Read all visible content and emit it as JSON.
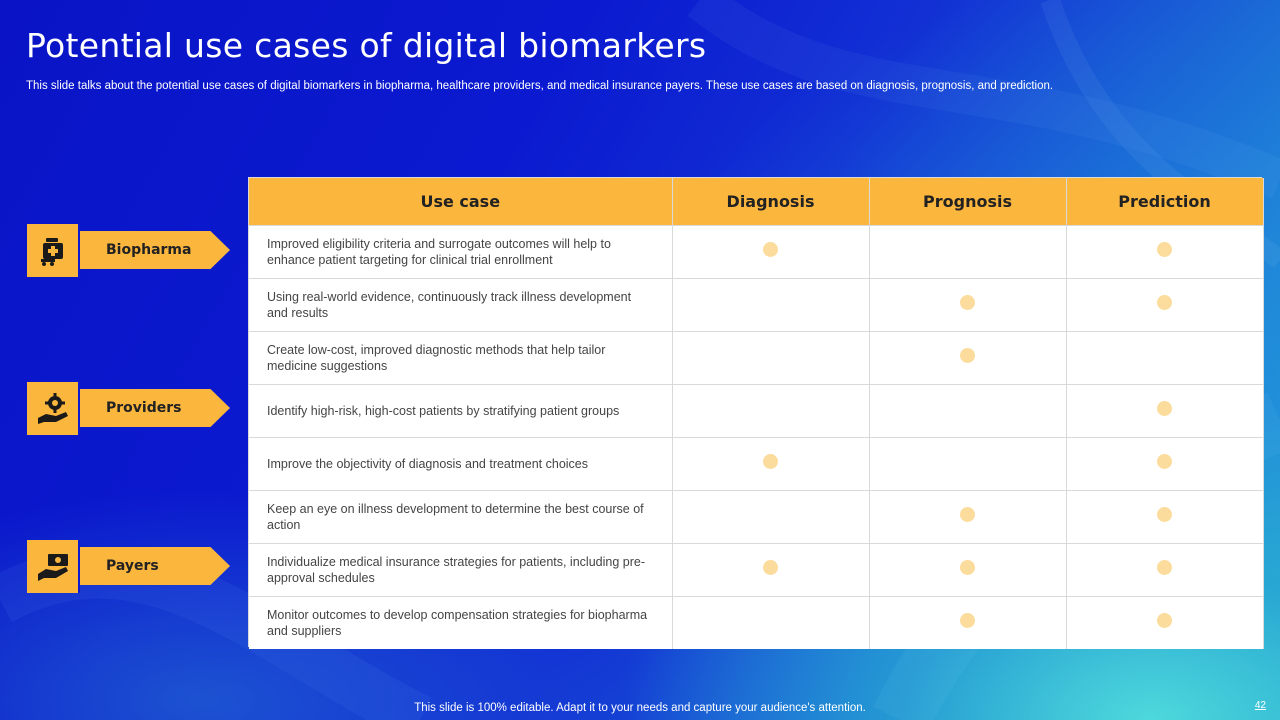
{
  "slide": {
    "title": "Potential use cases of digital biomarkers",
    "subtitle": "This slide talks about the potential use cases of digital biomarkers in biopharma, healthcare providers, and medical insurance payers. These use cases are based on diagnosis, prognosis, and prediction.",
    "footer": "This slide is 100% editable. Adapt it to your needs and capture your audience's attention.",
    "page_number": "42"
  },
  "colors": {
    "accent": "#fbb63e",
    "dot": "#fcdc9c",
    "background": "#0b1ad0"
  },
  "categories": [
    {
      "label": "Biopharma",
      "icon": "medicine-bag-icon"
    },
    {
      "label": "Providers",
      "icon": "gear-hand-icon"
    },
    {
      "label": "Payers",
      "icon": "money-hand-icon"
    }
  ],
  "table": {
    "headers": [
      "Use case",
      "Diagnosis",
      "Prognosis",
      "Prediction"
    ],
    "rows": [
      {
        "use_case": "Improved  eligibility criteria and surrogate outcomes will help to enhance patient targeting for clinical trial enrollment",
        "diagnosis": true,
        "prognosis": false,
        "prediction": true
      },
      {
        "use_case": "Using real-world  evidence,  continuously track illness development and results",
        "diagnosis": false,
        "prognosis": true,
        "prediction": true
      },
      {
        "use_case": "Create low-cost,  improved  diagnostic methods that help tailor medicine suggestions",
        "diagnosis": false,
        "prognosis": true,
        "prediction": false
      },
      {
        "use_case": "Identify high-risk,  high-cost patients by stratifying patient groups",
        "diagnosis": false,
        "prognosis": false,
        "prediction": true
      },
      {
        "use_case": "Improve  the objectivity of diagnosis and treatment choices",
        "diagnosis": true,
        "prognosis": false,
        "prediction": true
      },
      {
        "use_case": "Keep an eye on illness development  to determine the best course of action",
        "diagnosis": false,
        "prognosis": true,
        "prediction": true
      },
      {
        "use_case": "Individualize  medical insurance strategies for patients, including pre-approval  schedules",
        "diagnosis": true,
        "prognosis": true,
        "prediction": true
      },
      {
        "use_case": "Monitor outcomes to develop  compensation strategies for biopharma  and suppliers",
        "diagnosis": false,
        "prognosis": true,
        "prediction": true
      }
    ]
  }
}
